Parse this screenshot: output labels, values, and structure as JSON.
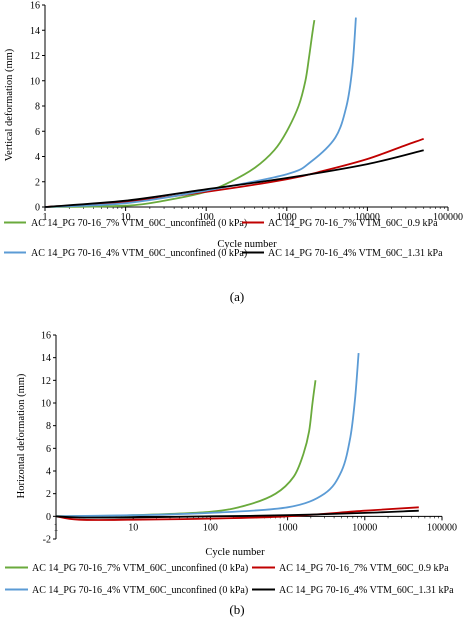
{
  "chart_data": [
    {
      "type": "line",
      "panel_label": "(a)",
      "xlabel": "Cycle number",
      "ylabel": "Vertical deformation (mm)",
      "xscale": "log",
      "xlim": [
        1,
        100000
      ],
      "ylim": [
        0,
        16
      ],
      "xticks": [
        1,
        10,
        100,
        1000,
        10000,
        100000
      ],
      "xtick_labels": [
        "1",
        "10",
        "100",
        "1000",
        "10000",
        "100000"
      ],
      "yticks": [
        0,
        2,
        4,
        6,
        8,
        10,
        12,
        14,
        16
      ],
      "ytick_labels": [
        "0",
        "2",
        "4",
        "6",
        "8",
        "10",
        "12",
        "14",
        "16"
      ],
      "grid": false,
      "legend_placement": "bottom",
      "series": [
        {
          "name": "AC 14_PG 70-16_7% VTM_60C_unconfined (0 kPa)",
          "color": "#6aaa3c",
          "x": [
            1,
            10,
            30,
            100,
            200,
            400,
            700,
            1000,
            1400,
            1700,
            1900,
            2100,
            2200
          ],
          "y": [
            0,
            0.1,
            0.5,
            1.2,
            2.0,
            3.1,
            4.5,
            6.0,
            8.0,
            10.0,
            12.0,
            14.0,
            14.8
          ]
        },
        {
          "name": "AC 14_PG 70-16_7% VTM_60C_0.9 kPa",
          "color": "#c00000",
          "x": [
            1,
            10,
            100,
            1000,
            3000,
            10000,
            30000,
            50000
          ],
          "y": [
            0,
            0.4,
            1.2,
            2.2,
            2.9,
            3.8,
            4.9,
            5.4
          ]
        },
        {
          "name": "AC 14_PG 70-16_4% VTM_60C_unconfined (0 kPa)",
          "color": "#5b9bd5",
          "x": [
            1,
            10,
            100,
            1000,
            2000,
            4000,
            5500,
            6500,
            7200
          ],
          "y": [
            0,
            0.3,
            1.3,
            2.6,
            3.6,
            5.5,
            8.0,
            11.0,
            15.0
          ]
        },
        {
          "name": "AC 14_PG 70-16_4% VTM_60C_1.31 kPa",
          "color": "#000000",
          "x": [
            1,
            10,
            100,
            1000,
            10000,
            50000
          ],
          "y": [
            0,
            0.5,
            1.4,
            2.3,
            3.4,
            4.5
          ]
        }
      ]
    },
    {
      "type": "line",
      "panel_label": "(b)",
      "xlabel": "Cycle number",
      "ylabel": "Horizontal deformation (mm)",
      "xscale": "log",
      "xlim": [
        1,
        100000
      ],
      "ylim": [
        -2,
        16
      ],
      "xticks": [
        1,
        10,
        100,
        1000,
        10000,
        100000
      ],
      "xtick_labels": [
        "1",
        "10",
        "100",
        "1000",
        "10000",
        "100000"
      ],
      "yticks": [
        -2,
        0,
        2,
        4,
        6,
        8,
        10,
        12,
        14,
        16
      ],
      "ytick_labels": [
        "-2",
        "0",
        "2",
        "4",
        "6",
        "8",
        "10",
        "12",
        "14",
        "16"
      ],
      "grid": false,
      "legend_placement": "bottom",
      "series": [
        {
          "name": "AC 14_PG 70-16_7% VTM_60C_unconfined (0 kPa)",
          "color": "#6aaa3c",
          "x": [
            1,
            10,
            100,
            300,
            700,
            1200,
            1600,
            1900,
            2100,
            2300
          ],
          "y": [
            0,
            0.1,
            0.4,
            1.0,
            2.0,
            3.5,
            5.5,
            7.5,
            10.0,
            12.0
          ]
        },
        {
          "name": "AC 14_PG 70-16_7% VTM_60C_0.9 kPa",
          "color": "#c00000",
          "x": [
            1,
            2,
            10,
            100,
            1000,
            10000,
            50000
          ],
          "y": [
            0,
            -0.3,
            -0.3,
            -0.2,
            0,
            0.5,
            0.8
          ]
        },
        {
          "name": "AC 14_PG 70-16_4% VTM_60C_unconfined (0 kPa)",
          "color": "#5b9bd5",
          "x": [
            1,
            10,
            100,
            1000,
            3000,
            5000,
            6500,
            7500,
            8300
          ],
          "y": [
            0,
            0.1,
            0.3,
            0.8,
            2.0,
            4.0,
            7.0,
            10.5,
            14.4
          ]
        },
        {
          "name": "AC 14_PG 70-16_4% VTM_60C_1.31 kPa",
          "color": "#000000",
          "x": [
            1,
            2,
            10,
            100,
            1000,
            10000,
            50000
          ],
          "y": [
            0,
            -0.1,
            -0.1,
            0,
            0.1,
            0.3,
            0.5
          ]
        }
      ]
    }
  ]
}
